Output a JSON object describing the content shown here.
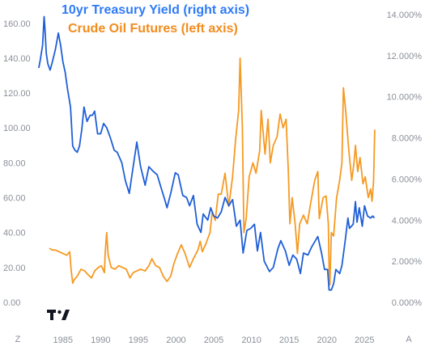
{
  "legend": {
    "series1": "10yr Treasury Yield (right axis)",
    "series2": "Crude Oil Futures (left axis)"
  },
  "colors": {
    "treasury": "#1f5fd6",
    "oil": "#f59a23",
    "legend_blue": "#2f7bf5",
    "legend_orange": "#f28c1e",
    "tick_text": "#8a8f98"
  },
  "corner_labels": {
    "left": "Z",
    "right": "A"
  },
  "logo_icon": "tradingview-logo-icon",
  "chart_data": {
    "type": "line",
    "title": "",
    "x_ticks": [
      "1985",
      "1990",
      "1995",
      "2000",
      "2005",
      "2010",
      "2015",
      "2020",
      "2025"
    ],
    "xlim": [
      1981.7,
      2026.9
    ],
    "left_axis": {
      "ticks": [
        "0.00",
        "20.00",
        "40.00",
        "60.00",
        "80.00",
        "100.00",
        "120.00",
        "140.00",
        "160.00"
      ],
      "ylim": [
        0,
        165
      ]
    },
    "right_axis": {
      "ticks": [
        "0.000%",
        "2.000%",
        "4.000%",
        "6.000%",
        "8.000%",
        "10.000%",
        "12.000%",
        "14.000%"
      ],
      "ylim": [
        0,
        14
      ]
    },
    "series": [
      {
        "name": "10yr Treasury Yield (right axis)",
        "axis": "right",
        "points": [
          [
            1981.8,
            11.4
          ],
          [
            1982.0,
            11.8
          ],
          [
            1982.3,
            12.5
          ],
          [
            1982.5,
            13.9
          ],
          [
            1982.6,
            13.4
          ],
          [
            1982.8,
            12.1
          ],
          [
            1983.0,
            11.6
          ],
          [
            1983.3,
            11.3
          ],
          [
            1983.6,
            11.7
          ],
          [
            1984.0,
            12.3
          ],
          [
            1984.4,
            13.1
          ],
          [
            1984.7,
            12.5
          ],
          [
            1985.0,
            11.7
          ],
          [
            1985.3,
            11.2
          ],
          [
            1985.6,
            10.4
          ],
          [
            1986.0,
            9.5
          ],
          [
            1986.3,
            7.6
          ],
          [
            1986.6,
            7.4
          ],
          [
            1986.9,
            7.3
          ],
          [
            1987.2,
            7.6
          ],
          [
            1987.5,
            8.4
          ],
          [
            1987.8,
            9.5
          ],
          [
            1988.2,
            8.8
          ],
          [
            1988.6,
            9.1
          ],
          [
            1988.9,
            9.1
          ],
          [
            1989.2,
            9.3
          ],
          [
            1989.6,
            8.2
          ],
          [
            1990.0,
            8.2
          ],
          [
            1990.4,
            8.7
          ],
          [
            1990.8,
            8.5
          ],
          [
            1991.3,
            8.0
          ],
          [
            1991.8,
            7.4
          ],
          [
            1992.2,
            7.3
          ],
          [
            1992.8,
            6.8
          ],
          [
            1993.3,
            5.9
          ],
          [
            1993.8,
            5.3
          ],
          [
            1994.2,
            6.3
          ],
          [
            1994.8,
            7.8
          ],
          [
            1995.3,
            6.6
          ],
          [
            1995.9,
            5.7
          ],
          [
            1996.4,
            6.6
          ],
          [
            1996.9,
            6.4
          ],
          [
            1997.5,
            6.2
          ],
          [
            1998.0,
            5.6
          ],
          [
            1998.5,
            5.0
          ],
          [
            1998.8,
            4.6
          ],
          [
            1999.3,
            5.3
          ],
          [
            1999.9,
            6.3
          ],
          [
            2000.3,
            6.2
          ],
          [
            2000.9,
            5.2
          ],
          [
            2001.4,
            5.1
          ],
          [
            2001.8,
            4.7
          ],
          [
            2002.3,
            5.2
          ],
          [
            2002.8,
            3.8
          ],
          [
            2003.3,
            3.4
          ],
          [
            2003.6,
            4.3
          ],
          [
            2004.2,
            4.0
          ],
          [
            2004.6,
            4.6
          ],
          [
            2005.0,
            4.2
          ],
          [
            2005.5,
            4.1
          ],
          [
            2006.0,
            4.4
          ],
          [
            2006.5,
            5.1
          ],
          [
            2007.0,
            4.7
          ],
          [
            2007.5,
            5.0
          ],
          [
            2008.0,
            3.7
          ],
          [
            2008.5,
            4.0
          ],
          [
            2008.9,
            2.4
          ],
          [
            2009.4,
            3.5
          ],
          [
            2009.9,
            3.6
          ],
          [
            2010.4,
            3.8
          ],
          [
            2010.8,
            2.5
          ],
          [
            2011.2,
            3.4
          ],
          [
            2011.7,
            2.0
          ],
          [
            2012.4,
            1.5
          ],
          [
            2012.9,
            1.7
          ],
          [
            2013.5,
            2.6
          ],
          [
            2013.9,
            3.0
          ],
          [
            2014.5,
            2.5
          ],
          [
            2015.0,
            1.8
          ],
          [
            2015.5,
            2.3
          ],
          [
            2016.0,
            2.1
          ],
          [
            2016.5,
            1.4
          ],
          [
            2016.9,
            2.4
          ],
          [
            2017.5,
            2.3
          ],
          [
            2018.0,
            2.7
          ],
          [
            2018.8,
            3.2
          ],
          [
            2019.3,
            2.4
          ],
          [
            2019.7,
            1.6
          ],
          [
            2020.1,
            1.6
          ],
          [
            2020.3,
            0.6
          ],
          [
            2020.6,
            0.6
          ],
          [
            2020.9,
            0.9
          ],
          [
            2021.2,
            1.6
          ],
          [
            2021.7,
            1.4
          ],
          [
            2022.0,
            1.8
          ],
          [
            2022.4,
            2.9
          ],
          [
            2022.8,
            4.1
          ],
          [
            2023.0,
            3.6
          ],
          [
            2023.5,
            3.8
          ],
          [
            2023.8,
            4.9
          ],
          [
            2024.0,
            3.9
          ],
          [
            2024.3,
            4.6
          ],
          [
            2024.7,
            3.7
          ],
          [
            2025.0,
            4.7
          ],
          [
            2025.4,
            4.2
          ],
          [
            2025.8,
            4.1
          ],
          [
            2026.1,
            4.2
          ],
          [
            2026.3,
            4.1
          ]
        ]
      },
      {
        "name": "Crude Oil Futures (left axis)",
        "axis": "left",
        "points": [
          [
            1983.2,
            31
          ],
          [
            1983.6,
            30
          ],
          [
            1984.0,
            30
          ],
          [
            1984.5,
            29
          ],
          [
            1985.0,
            28
          ],
          [
            1985.5,
            27
          ],
          [
            1985.9,
            29
          ],
          [
            1986.1,
            18
          ],
          [
            1986.3,
            11
          ],
          [
            1986.5,
            13
          ],
          [
            1986.9,
            15
          ],
          [
            1987.4,
            19
          ],
          [
            1987.9,
            18
          ],
          [
            1988.3,
            16
          ],
          [
            1988.8,
            14
          ],
          [
            1989.2,
            18
          ],
          [
            1989.7,
            20
          ],
          [
            1990.1,
            21
          ],
          [
            1990.5,
            17
          ],
          [
            1990.6,
            28
          ],
          [
            1990.8,
            40
          ],
          [
            1991.0,
            27
          ],
          [
            1991.4,
            20
          ],
          [
            1991.9,
            19
          ],
          [
            1992.4,
            21
          ],
          [
            1992.9,
            20
          ],
          [
            1993.4,
            19
          ],
          [
            1993.9,
            14
          ],
          [
            1994.3,
            17
          ],
          [
            1994.8,
            18
          ],
          [
            1995.3,
            19
          ],
          [
            1995.9,
            18
          ],
          [
            1996.4,
            21
          ],
          [
            1996.8,
            25
          ],
          [
            1997.3,
            21
          ],
          [
            1997.8,
            20
          ],
          [
            1998.3,
            15
          ],
          [
            1998.8,
            12
          ],
          [
            1999.3,
            15
          ],
          [
            1999.7,
            22
          ],
          [
            2000.2,
            28
          ],
          [
            2000.7,
            33
          ],
          [
            2001.2,
            28
          ],
          [
            2001.8,
            20
          ],
          [
            2002.3,
            25
          ],
          [
            2002.9,
            30
          ],
          [
            2003.2,
            35
          ],
          [
            2003.5,
            29
          ],
          [
            2004.0,
            34
          ],
          [
            2004.5,
            40
          ],
          [
            2004.8,
            52
          ],
          [
            2005.2,
            47
          ],
          [
            2005.6,
            62
          ],
          [
            2006.0,
            62
          ],
          [
            2006.5,
            74
          ],
          [
            2007.0,
            55
          ],
          [
            2007.5,
            72
          ],
          [
            2007.9,
            93
          ],
          [
            2008.3,
            110
          ],
          [
            2008.5,
            140
          ],
          [
            2008.8,
            100
          ],
          [
            2009.0,
            40
          ],
          [
            2009.3,
            48
          ],
          [
            2009.7,
            72
          ],
          [
            2010.2,
            80
          ],
          [
            2010.6,
            74
          ],
          [
            2011.1,
            87
          ],
          [
            2011.3,
            110
          ],
          [
            2011.8,
            85
          ],
          [
            2012.2,
            105
          ],
          [
            2012.5,
            80
          ],
          [
            2012.9,
            90
          ],
          [
            2013.4,
            95
          ],
          [
            2013.8,
            108
          ],
          [
            2014.2,
            100
          ],
          [
            2014.6,
            105
          ],
          [
            2014.9,
            75
          ],
          [
            2015.1,
            45
          ],
          [
            2015.4,
            60
          ],
          [
            2015.8,
            45
          ],
          [
            2016.1,
            28
          ],
          [
            2016.4,
            45
          ],
          [
            2016.9,
            50
          ],
          [
            2017.4,
            45
          ],
          [
            2017.9,
            58
          ],
          [
            2018.4,
            70
          ],
          [
            2018.8,
            75
          ],
          [
            2019.0,
            48
          ],
          [
            2019.5,
            60
          ],
          [
            2019.9,
            61
          ],
          [
            2020.2,
            45
          ],
          [
            2020.3,
            20
          ],
          [
            2020.4,
            10
          ],
          [
            2020.6,
            40
          ],
          [
            2020.9,
            38
          ],
          [
            2021.3,
            60
          ],
          [
            2021.7,
            70
          ],
          [
            2022.0,
            80
          ],
          [
            2022.2,
            123
          ],
          [
            2022.5,
            110
          ],
          [
            2022.9,
            88
          ],
          [
            2023.3,
            70
          ],
          [
            2023.6,
            80
          ],
          [
            2023.8,
            90
          ],
          [
            2024.1,
            75
          ],
          [
            2024.4,
            83
          ],
          [
            2024.8,
            68
          ],
          [
            2025.1,
            72
          ],
          [
            2025.5,
            60
          ],
          [
            2025.8,
            65
          ],
          [
            2026.0,
            58
          ],
          [
            2026.2,
            70
          ],
          [
            2026.35,
            99
          ]
        ]
      }
    ]
  }
}
